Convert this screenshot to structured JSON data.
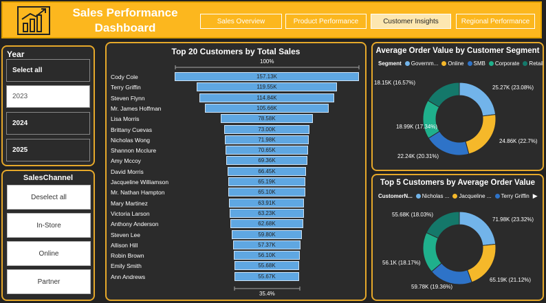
{
  "header": {
    "title_line1": "Sales Performance",
    "title_line2": "Dashboard",
    "nav": [
      {
        "label": "Sales Overview",
        "active": false
      },
      {
        "label": "Product Performance",
        "active": false
      },
      {
        "label": "Customer Insights",
        "active": true
      },
      {
        "label": "Regional Performance",
        "active": false
      }
    ],
    "logo_icon": "growth-chart-icon"
  },
  "year_slicer": {
    "title": "Year",
    "items": [
      {
        "label": "Select all",
        "selected": false
      },
      {
        "label": "2023",
        "selected": true
      },
      {
        "label": "2024",
        "selected": false
      },
      {
        "label": "2025",
        "selected": false
      }
    ]
  },
  "channel_slicer": {
    "title": "SalesChannel",
    "items": [
      "Deselect all",
      "In-Store",
      "Online",
      "Partner"
    ]
  },
  "funnel": {
    "title": "Top 20 Customers by Total Sales",
    "top_pct": "100%",
    "bottom_pct": "35.4%",
    "bar_color": "#5fa7e2"
  },
  "chart_data": [
    {
      "type": "bar",
      "title": "Top 20 Customers by Total Sales",
      "categories": [
        "Cody Cole",
        "Terry Griffin",
        "Steven Flynn",
        "Mr. James Hoffman",
        "Lisa Morris",
        "Brittany Cuevas",
        "Nicholas Wong",
        "Shannon Mcclure",
        "Amy Mccoy",
        "David Morris",
        "Jacqueline Williamson",
        "Mr. Nathan Hampton",
        "Mary Martinez",
        "Victoria Larson",
        "Anthony Anderson",
        "Steven Lee",
        "Allison Hill",
        "Robin Brown",
        "Emily Smith",
        "Ann Andrews"
      ],
      "values": [
        157130,
        119550,
        114840,
        105660,
        78580,
        73000,
        71980,
        70650,
        69360,
        66450,
        65190,
        65100,
        63910,
        63230,
        62680,
        59800,
        57370,
        56100,
        55680,
        55670
      ],
      "value_labels": [
        "157.13K",
        "119.55K",
        "114.84K",
        "105.66K",
        "78.58K",
        "73.00K",
        "71.98K",
        "70.65K",
        "69.36K",
        "66.45K",
        "65.19K",
        "65.10K",
        "63.91K",
        "63.23K",
        "62.68K",
        "59.80K",
        "57.37K",
        "56.10K",
        "55.68K",
        "55.67K"
      ]
    },
    {
      "type": "pie",
      "title": "Average Order Value by Customer Segment",
      "legend_title": "Segment",
      "categories": [
        "Government",
        "Online",
        "SMB",
        "Corporate",
        "Retail"
      ],
      "legend_labels": [
        "Governm...",
        "Online",
        "SMB",
        "Corporate",
        "Retail"
      ],
      "colors": [
        "#72b4ea",
        "#f5b82a",
        "#2e73c8",
        "#1fb08c",
        "#14786a"
      ],
      "slices": [
        {
          "label": "25.27K (23.08%)",
          "value": 25270,
          "pct": 23.08,
          "color": "#72b4ea"
        },
        {
          "label": "24.86K (22.7%)",
          "value": 24860,
          "pct": 22.7,
          "color": "#f5b82a"
        },
        {
          "label": "22.24K (20.31%)",
          "value": 22240,
          "pct": 20.31,
          "color": "#2e73c8"
        },
        {
          "label": "18.99K (17.34%)",
          "value": 18990,
          "pct": 17.34,
          "color": "#1fb08c"
        },
        {
          "label": "18.15K (16.57%)",
          "value": 18150,
          "pct": 16.57,
          "color": "#14786a"
        }
      ]
    },
    {
      "type": "pie",
      "title": "Top 5 Customers by Average Order Value",
      "legend_title": "CustomerN...",
      "legend_labels": [
        "Nicholas ...",
        "Jacqueline ...",
        "Terry Griffin"
      ],
      "legend_colors": [
        "#72b4ea",
        "#f5b82a",
        "#2e73c8"
      ],
      "slices": [
        {
          "label": "71.98K (23.32%)",
          "value": 71980,
          "pct": 23.32,
          "color": "#72b4ea"
        },
        {
          "label": "65.19K (21.12%)",
          "value": 65190,
          "pct": 21.12,
          "color": "#f5b82a"
        },
        {
          "label": "59.78K (19.36%)",
          "value": 59780,
          "pct": 19.36,
          "color": "#2e73c8"
        },
        {
          "label": "56.1K (18.17%)",
          "value": 56100,
          "pct": 18.17,
          "color": "#1fb08c"
        },
        {
          "label": "55.68K (18.03%)",
          "value": 55680,
          "pct": 18.03,
          "color": "#14786a"
        }
      ]
    }
  ],
  "colors": {
    "accent": "#fcb71e",
    "panel_border": "#e7a92a",
    "panel_bg": "#2b2b2b"
  }
}
